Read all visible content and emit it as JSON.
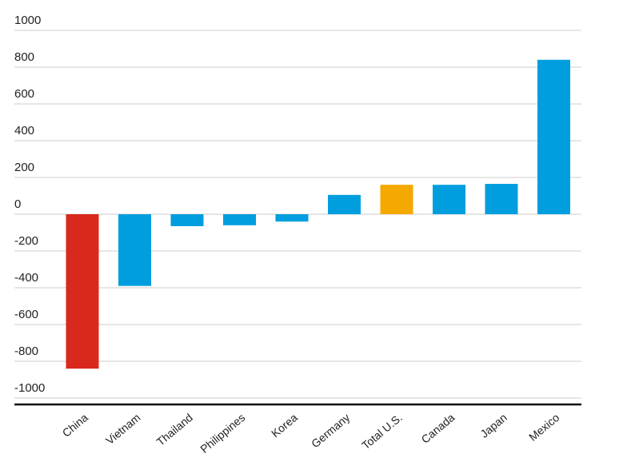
{
  "chart_data": {
    "type": "bar",
    "title": "",
    "xlabel": "",
    "ylabel": "",
    "ylim": [
      -1000,
      1000
    ],
    "yticks": [
      1000,
      800,
      600,
      400,
      200,
      0,
      -200,
      -400,
      -600,
      -800,
      -1000
    ],
    "grid": true,
    "categories": [
      "China",
      "Vietnam",
      "Thailand",
      "Philippines",
      "Korea",
      "Germany",
      "Total U.S.",
      "Canada",
      "Japan",
      "Mexico"
    ],
    "values": [
      -840,
      -390,
      -65,
      -60,
      -40,
      105,
      160,
      160,
      165,
      840
    ],
    "colors": [
      "#d9291c",
      "#009ede",
      "#009ede",
      "#009ede",
      "#009ede",
      "#009ede",
      "#f5a800",
      "#009ede",
      "#009ede",
      "#009ede"
    ]
  }
}
